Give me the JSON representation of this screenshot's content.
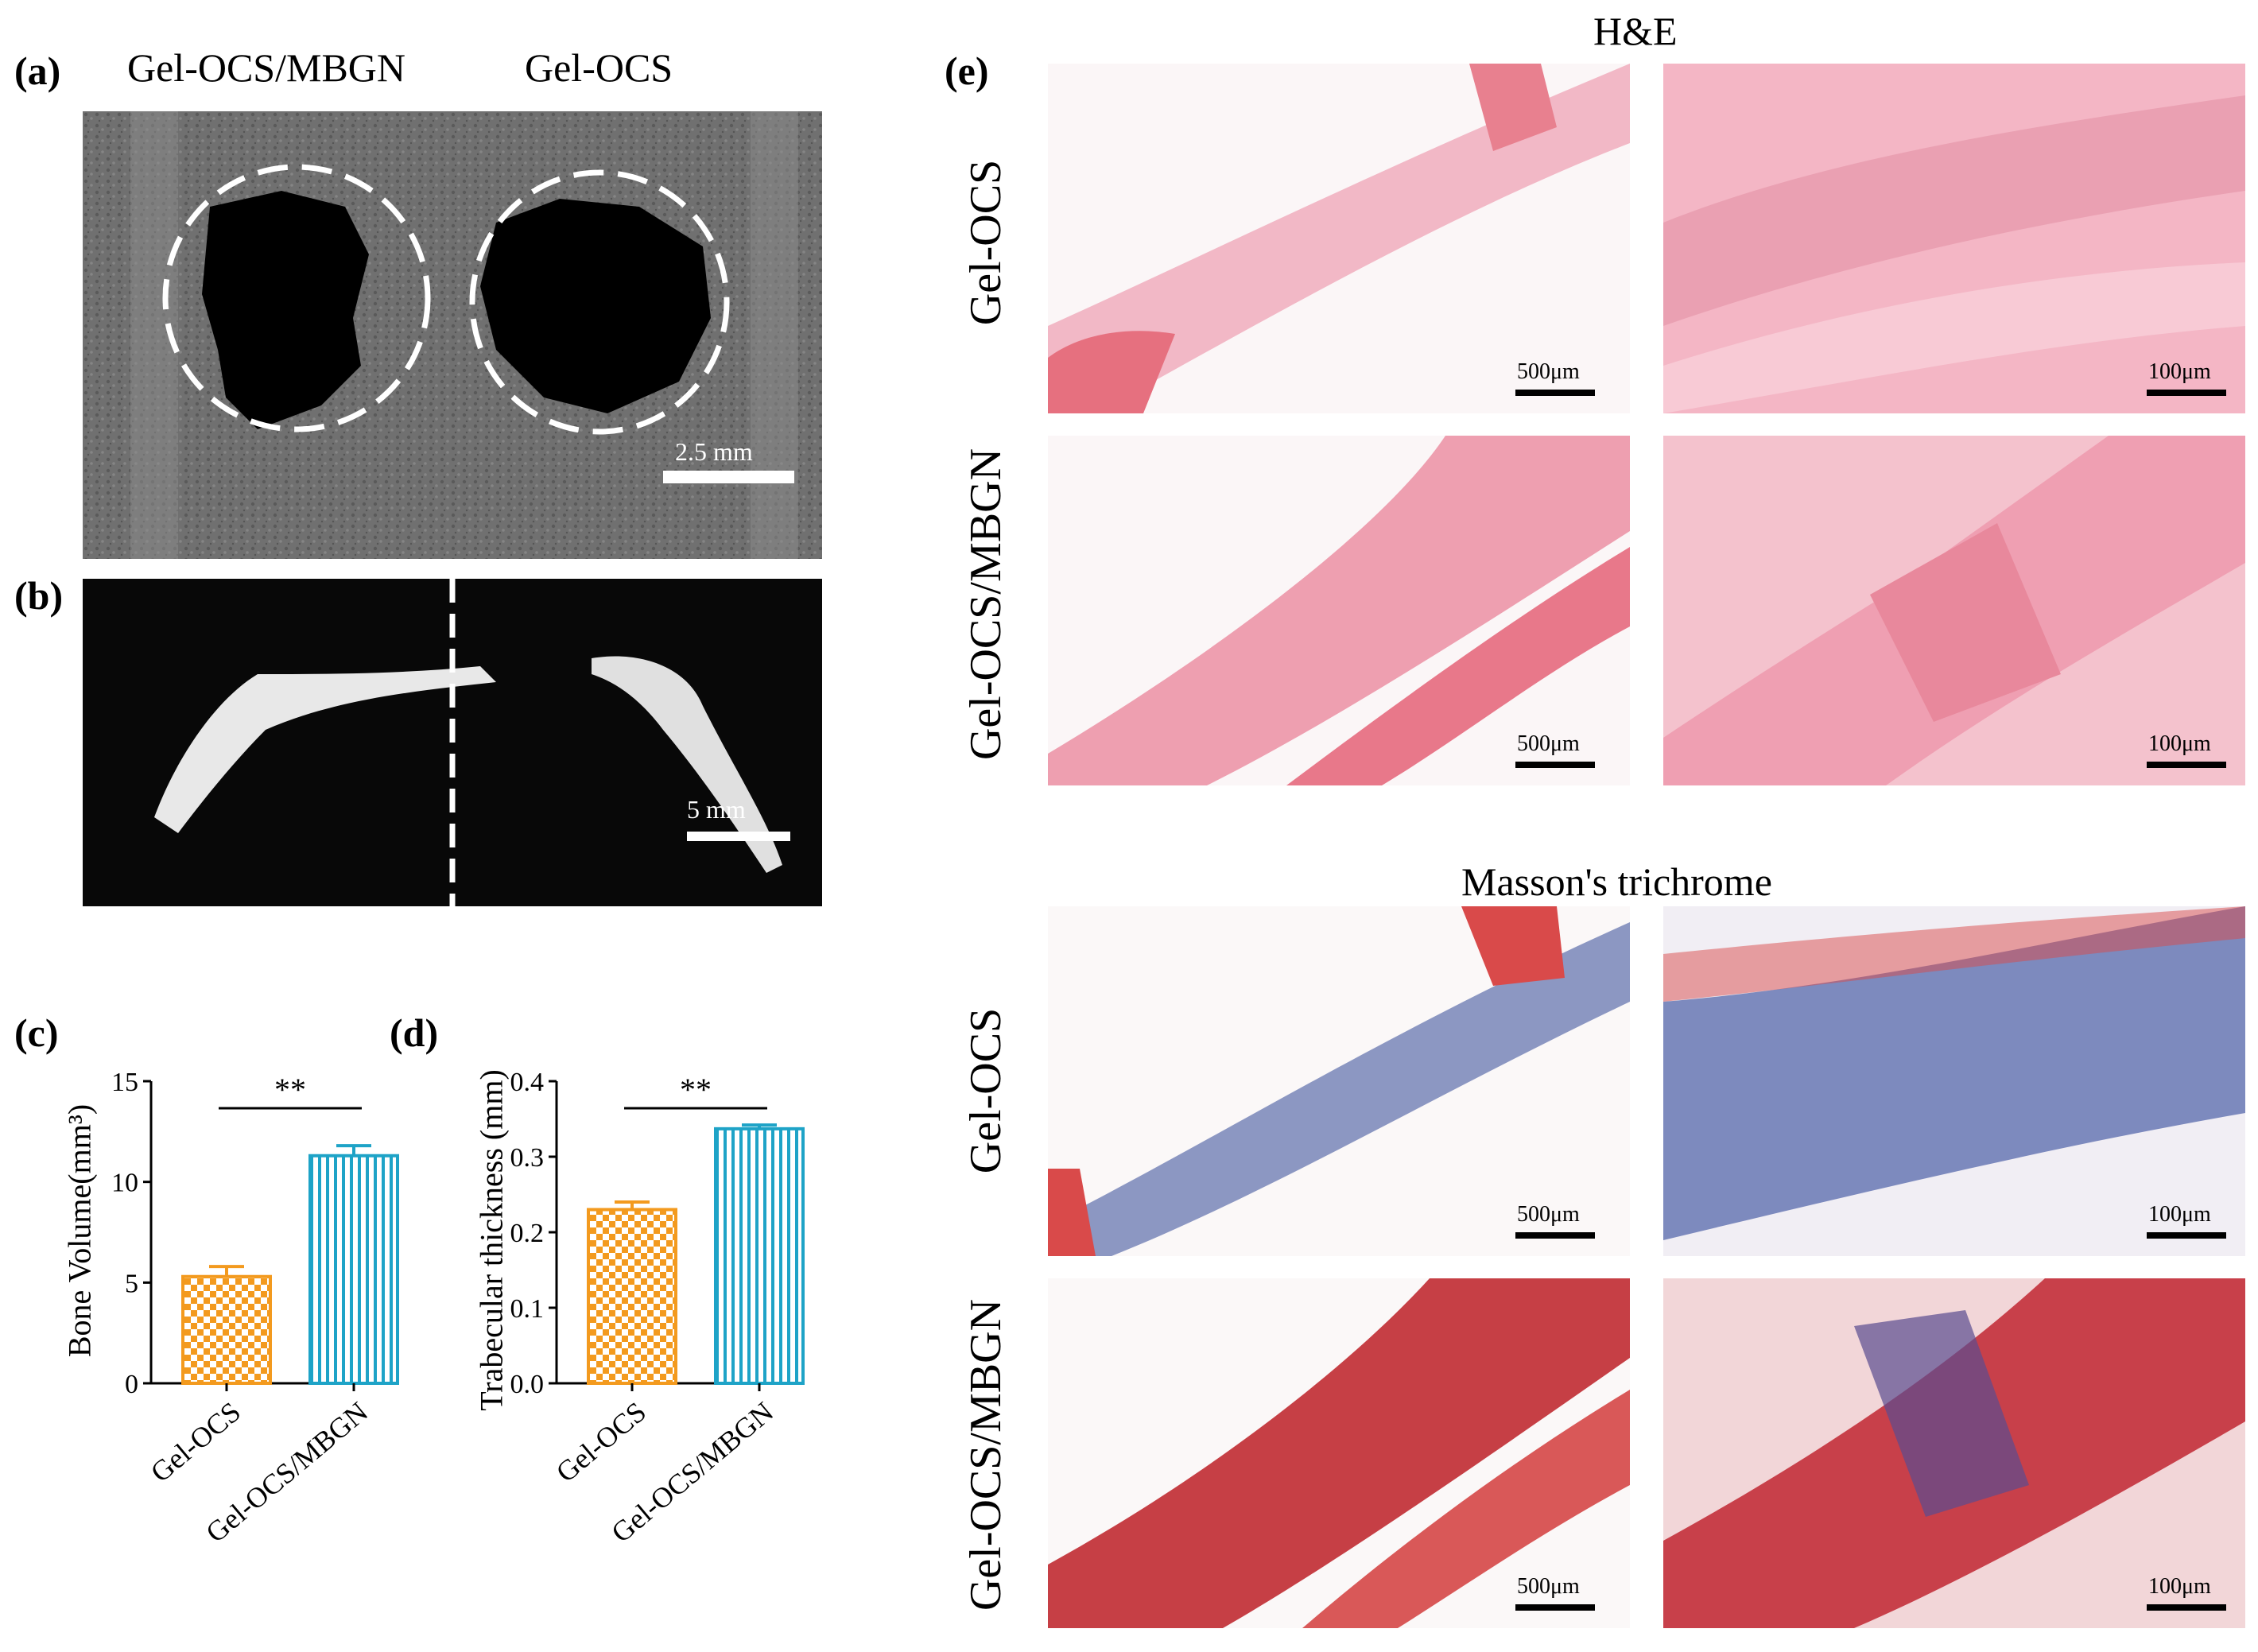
{
  "panels": {
    "a": {
      "label": "(a)",
      "col_left": "Gel-OCS/MBGN",
      "col_right": "Gel-OCS",
      "scale": "2.5 mm"
    },
    "b": {
      "label": "(b)",
      "scale": "5 mm"
    },
    "c": {
      "label": "(c)",
      "ylabel": "Bone Volume(mm³)",
      "sig": "**"
    },
    "d": {
      "label": "(d)",
      "ylabel": "Trabecular  thickness (mm)",
      "sig": "**"
    },
    "e": {
      "label": "(e)",
      "he_title": "H&E",
      "masson_title": "Masson's trichrome",
      "row_labels": [
        "Gel-OCS",
        "Gel-OCS/MBGN",
        "Gel-OCS",
        "Gel-OCS/MBGN"
      ],
      "scale_low": "500μm",
      "scale_high": "100μm"
    }
  },
  "colors": {
    "orange": "#f39a1e",
    "blue": "#1ea3c7",
    "he_pink": "#f0a8b8",
    "masson_red": "#d94a4a",
    "masson_blue": "#4a5fa8"
  },
  "chart_data": [
    {
      "type": "bar",
      "categories": [
        "Gel-OCS",
        "Gel-OCS/MBGN"
      ],
      "values": [
        5.3,
        11.3
      ],
      "errors": [
        0.5,
        0.5
      ],
      "ylabel": "Bone Volume(mm³)",
      "ylim": [
        0,
        15
      ],
      "yticks": [
        0,
        5,
        10,
        15
      ],
      "significance": "**",
      "bar_colors": [
        "#f39a1e",
        "#1ea3c7"
      ]
    },
    {
      "type": "bar",
      "categories": [
        "Gel-OCS",
        "Gel-OCS/MBGN"
      ],
      "values": [
        0.23,
        0.337
      ],
      "errors": [
        0.01,
        0.005
      ],
      "ylabel": "Trabecular  thickness (mm)",
      "ylim": [
        0,
        0.4
      ],
      "yticks": [
        0.0,
        0.1,
        0.2,
        0.3,
        0.4
      ],
      "significance": "**",
      "bar_colors": [
        "#f39a1e",
        "#1ea3c7"
      ]
    }
  ]
}
